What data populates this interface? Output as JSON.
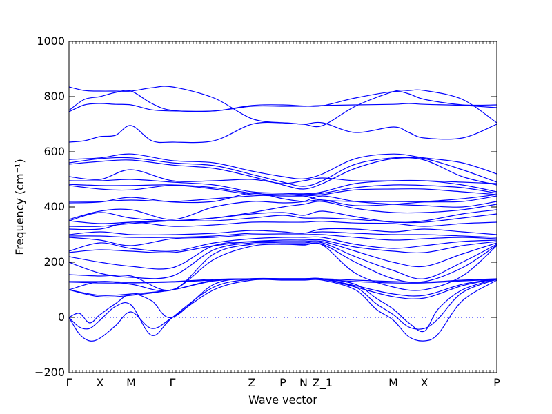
{
  "chart_data": {
    "type": "line",
    "xlabel": "Wave vector",
    "ylabel": "Frequency (cm⁻¹)",
    "ylim": [
      -200,
      1000
    ],
    "y_ticks": [
      -200,
      0,
      200,
      400,
      600,
      800,
      1000
    ],
    "grid": false,
    "legend": "none",
    "zero_line": {
      "y": 0,
      "style": "dotted"
    },
    "x_points": [
      {
        "label": "Γ",
        "x": 0
      },
      {
        "label": "X",
        "x": 0.9
      },
      {
        "label": "M",
        "x": 1.8
      },
      {
        "label": "Γ",
        "x": 3.0
      },
      {
        "label": "Z",
        "x": 5.3
      },
      {
        "label": "P",
        "x": 6.2
      },
      {
        "label": "N",
        "x": 6.8
      },
      {
        "label": "Z_1",
        "x": 7.35
      },
      {
        "label": "M",
        "x": 9.4
      },
      {
        "label": "X",
        "x": 10.3
      },
      {
        "label": "P",
        "x": 12.4
      }
    ],
    "series": [
      {
        "x": [
          0,
          0.45,
          0.9,
          1.35,
          1.8,
          2.4,
          3.0,
          4.2,
          5.3,
          6.2,
          6.8,
          7.35,
          8.3,
          9.4,
          9.85,
          10.3,
          11.4,
          12.4
        ],
        "values": [
          835,
          822,
          820,
          820,
          820,
          832,
          835,
          795,
          720,
          705,
          700,
          695,
          765,
          818,
          822,
          822,
          790,
          705
        ]
      },
      {
        "x": [
          0,
          0.45,
          0.9,
          1.35,
          1.8,
          2.4,
          3.0,
          4.2,
          5.3,
          6.2,
          6.8,
          7.35,
          8.3,
          9.4,
          9.85,
          10.3,
          11.4,
          12.4
        ],
        "values": [
          750,
          790,
          800,
          815,
          820,
          775,
          750,
          748,
          768,
          770,
          766,
          767,
          795,
          818,
          810,
          790,
          770,
          770
        ]
      },
      {
        "x": [
          0,
          0.45,
          0.9,
          1.35,
          1.8,
          2.4,
          3.0,
          4.2,
          5.3,
          6.2,
          6.8,
          7.35,
          8.3,
          9.4,
          9.85,
          10.3,
          11.4,
          12.4
        ],
        "values": [
          745,
          770,
          775,
          772,
          770,
          752,
          748,
          748,
          765,
          765,
          765,
          768,
          770,
          772,
          775,
          772,
          768,
          760
        ]
      },
      {
        "x": [
          0,
          0.45,
          0.9,
          1.35,
          1.8,
          2.4,
          3.0,
          4.2,
          5.3,
          6.2,
          6.8,
          7.35,
          8.3,
          9.4,
          9.85,
          10.3,
          11.4,
          12.4
        ],
        "values": [
          635,
          640,
          655,
          660,
          695,
          640,
          635,
          640,
          700,
          705,
          700,
          705,
          670,
          690,
          670,
          650,
          650,
          700
        ]
      },
      {
        "x": [
          0,
          0.9,
          1.8,
          3.0,
          4.2,
          5.3,
          6.2,
          6.8,
          7.35,
          8.3,
          9.4,
          10.3,
          11.4,
          12.4
        ],
        "values": [
          572,
          578,
          592,
          568,
          560,
          530,
          510,
          502,
          520,
          575,
          592,
          578,
          560,
          520
        ]
      },
      {
        "x": [
          0,
          0.9,
          1.8,
          3.0,
          4.2,
          5.3,
          6.2,
          6.8,
          7.35,
          8.3,
          9.4,
          10.3,
          11.4,
          12.4
        ],
        "values": [
          560,
          575,
          578,
          560,
          550,
          518,
          490,
          475,
          495,
          555,
          578,
          575,
          535,
          490
        ]
      },
      {
        "x": [
          0,
          0.9,
          1.8,
          3.0,
          4.2,
          5.3,
          6.2,
          6.8,
          7.35,
          8.3,
          9.4,
          10.3,
          11.4,
          12.4
        ],
        "values": [
          555,
          565,
          570,
          552,
          540,
          510,
          480,
          465,
          485,
          540,
          575,
          570,
          510,
          480
        ]
      },
      {
        "x": [
          0,
          0.9,
          1.8,
          3.0,
          4.2,
          5.3,
          6.2,
          6.8,
          7.35,
          8.3,
          9.4,
          10.3,
          11.4,
          12.4
        ],
        "values": [
          510,
          500,
          535,
          495,
          495,
          500,
          485,
          495,
          505,
          495,
          495,
          495,
          490,
          485
        ]
      },
      {
        "x": [
          0,
          0.9,
          1.8,
          3.0,
          4.2,
          5.3,
          6.2,
          6.8,
          7.35,
          8.3,
          9.4,
          10.3,
          11.4,
          12.4
        ],
        "values": [
          495,
          495,
          500,
          490,
          480,
          455,
          450,
          448,
          455,
          485,
          495,
          495,
          480,
          455
        ]
      },
      {
        "x": [
          0,
          0.9,
          1.8,
          3.0,
          4.2,
          5.3,
          6.2,
          6.8,
          7.35,
          8.3,
          9.4,
          10.3,
          11.4,
          12.4
        ],
        "values": [
          482,
          478,
          478,
          480,
          470,
          450,
          445,
          445,
          450,
          470,
          480,
          478,
          470,
          450
        ]
      },
      {
        "x": [
          0,
          0.9,
          1.8,
          3.0,
          4.2,
          5.3,
          6.2,
          6.8,
          7.35,
          8.3,
          9.4,
          10.3,
          11.4,
          12.4
        ],
        "values": [
          478,
          465,
          462,
          478,
          465,
          445,
          440,
          440,
          445,
          462,
          465,
          465,
          455,
          445
        ]
      },
      {
        "x": [
          0,
          0.9,
          1.8,
          3.0,
          4.2,
          5.3,
          6.2,
          6.8,
          7.35,
          8.3,
          9.4,
          10.3,
          11.4,
          12.4
        ],
        "values": [
          420,
          420,
          425,
          420,
          430,
          440,
          445,
          440,
          425,
          420,
          420,
          420,
          430,
          445
        ]
      },
      {
        "x": [
          0,
          0.9,
          1.8,
          3.0,
          4.2,
          5.3,
          6.2,
          6.8,
          7.35,
          8.3,
          9.4,
          10.3,
          11.4,
          12.4
        ],
        "values": [
          415,
          418,
          435,
          418,
          420,
          450,
          430,
          420,
          425,
          405,
          410,
          418,
          420,
          440
        ]
      },
      {
        "x": [
          0,
          0.9,
          1.8,
          3.0,
          4.2,
          5.3,
          6.2,
          6.8,
          7.35,
          8.3,
          9.4,
          10.3,
          11.4,
          12.4
        ],
        "values": [
          355,
          385,
          390,
          355,
          400,
          420,
          415,
          420,
          440,
          420,
          410,
          405,
          400,
          420
        ]
      },
      {
        "x": [
          0,
          0.9,
          1.8,
          3.0,
          4.2,
          5.3,
          6.2,
          6.8,
          7.35,
          8.3,
          9.4,
          10.3,
          11.4,
          12.4
        ],
        "values": [
          350,
          380,
          360,
          350,
          360,
          380,
          400,
          410,
          420,
          395,
          380,
          380,
          390,
          410
        ]
      },
      {
        "x": [
          0,
          0.9,
          1.8,
          3.0,
          4.2,
          5.3,
          6.2,
          6.8,
          7.35,
          8.3,
          9.4,
          10.3,
          11.4,
          12.4
        ],
        "values": [
          350,
          340,
          345,
          350,
          360,
          375,
          380,
          370,
          385,
          365,
          345,
          350,
          375,
          390
        ]
      },
      {
        "x": [
          0,
          0.9,
          1.8,
          3.0,
          4.2,
          5.3,
          6.2,
          6.8,
          7.35,
          8.3,
          9.4,
          10.3,
          11.4,
          12.4
        ],
        "values": [
          330,
          330,
          340,
          350,
          350,
          360,
          370,
          360,
          360,
          355,
          345,
          345,
          360,
          375
        ]
      },
      {
        "x": [
          0,
          0.9,
          1.8,
          3.0,
          4.2,
          5.3,
          6.2,
          6.8,
          7.35,
          8.3,
          9.4,
          10.3,
          11.4,
          12.4
        ],
        "values": [
          320,
          320,
          345,
          330,
          335,
          345,
          345,
          345,
          348,
          342,
          340,
          330,
          340,
          345
        ]
      },
      {
        "x": [
          0,
          0.9,
          1.8,
          3.0,
          4.2,
          5.3,
          6.2,
          6.8,
          7.35,
          8.3,
          9.4,
          10.3,
          11.4,
          12.4
        ],
        "values": [
          300,
          310,
          300,
          300,
          305,
          315,
          310,
          305,
          320,
          320,
          310,
          320,
          310,
          300
        ]
      },
      {
        "x": [
          0,
          0.9,
          1.8,
          3.0,
          4.2,
          5.3,
          6.2,
          6.8,
          7.35,
          8.3,
          9.4,
          10.3,
          11.4,
          12.4
        ],
        "values": [
          295,
          295,
          290,
          290,
          295,
          305,
          305,
          305,
          310,
          305,
          300,
          300,
          295,
          290
        ]
      },
      {
        "x": [
          0,
          0.9,
          1.8,
          3.0,
          4.2,
          5.3,
          6.2,
          6.8,
          7.35,
          8.3,
          9.4,
          10.3,
          11.4,
          12.4
        ],
        "values": [
          290,
          280,
          260,
          285,
          290,
          300,
          300,
          300,
          300,
          290,
          280,
          285,
          290,
          285
        ]
      },
      {
        "x": [
          0,
          0.9,
          1.8,
          3.0,
          4.2,
          5.3,
          6.2,
          6.8,
          7.35,
          8.3,
          9.4,
          10.3,
          11.4,
          12.4
        ],
        "values": [
          240,
          270,
          250,
          240,
          270,
          285,
          290,
          290,
          290,
          265,
          250,
          260,
          275,
          280
        ]
      },
      {
        "x": [
          0,
          0.9,
          1.8,
          3.0,
          4.2,
          5.3,
          6.2,
          6.8,
          7.35,
          8.3,
          9.4,
          10.3,
          11.4,
          12.4
        ],
        "values": [
          235,
          245,
          240,
          235,
          260,
          275,
          280,
          280,
          280,
          255,
          240,
          235,
          260,
          275
        ]
      },
      {
        "x": [
          0,
          0.9,
          1.8,
          3.0,
          4.2,
          5.3,
          6.2,
          6.8,
          7.35,
          8.3,
          9.4,
          10.3,
          11.4,
          12.4
        ],
        "values": [
          220,
          200,
          185,
          180,
          260,
          275,
          275,
          275,
          275,
          240,
          200,
          185,
          230,
          270
        ]
      },
      {
        "x": [
          0,
          0.9,
          1.8,
          3.0,
          4.2,
          5.3,
          6.2,
          6.8,
          7.35,
          8.3,
          9.4,
          10.3,
          11.4,
          12.4
        ],
        "values": [
          200,
          160,
          145,
          150,
          245,
          270,
          270,
          270,
          270,
          220,
          170,
          140,
          200,
          265
        ]
      },
      {
        "x": [
          0,
          0.9,
          1.8,
          3.0,
          4.2,
          5.3,
          6.2,
          6.8,
          7.35,
          8.3,
          9.4,
          10.3,
          11.4,
          12.4
        ],
        "values": [
          155,
          150,
          150,
          100,
          230,
          265,
          265,
          265,
          265,
          200,
          140,
          130,
          180,
          262
        ]
      },
      {
        "x": [
          0,
          0.9,
          1.8,
          3.0,
          4.2,
          5.3,
          6.2,
          6.8,
          7.35,
          8.3,
          9.4,
          10.3,
          11.4,
          12.4
        ],
        "values": [
          100,
          130,
          120,
          100,
          210,
          258,
          265,
          262,
          262,
          160,
          110,
          100,
          150,
          260
        ]
      },
      {
        "x": [
          0,
          0.9,
          1.8,
          3.0,
          4.2,
          5.3,
          6.2,
          6.8,
          7.35,
          8.3,
          9.4,
          10.3,
          11.4,
          12.4
        ],
        "values": [
          130,
          130,
          128,
          130,
          138,
          140,
          140,
          140,
          140,
          135,
          130,
          128,
          135,
          140
        ]
      },
      {
        "x": [
          0,
          0.9,
          1.8,
          3.0,
          4.2,
          5.3,
          6.2,
          6.8,
          7.35,
          8.3,
          9.4,
          10.3,
          11.4,
          12.4
        ],
        "values": [
          128,
          125,
          125,
          128,
          135,
          138,
          138,
          138,
          138,
          130,
          125,
          125,
          132,
          138
        ]
      },
      {
        "x": [
          0,
          0.9,
          1.8,
          3.0,
          4.2,
          5.3,
          6.2,
          6.8,
          7.35,
          8.3,
          9.4,
          10.3,
          11.4,
          12.4
        ],
        "values": [
          100,
          80,
          85,
          100,
          135,
          140,
          140,
          140,
          140,
          115,
          85,
          80,
          120,
          140
        ]
      },
      {
        "x": [
          0,
          0.9,
          1.8,
          3.0,
          4.2,
          5.3,
          6.2,
          6.8,
          7.35,
          8.3,
          9.4,
          10.3,
          11.4,
          12.4
        ],
        "values": [
          100,
          75,
          80,
          100,
          132,
          140,
          140,
          140,
          140,
          110,
          75,
          70,
          115,
          140
        ]
      },
      {
        "x": [
          0,
          0.3,
          0.6,
          0.9,
          1.35,
          1.8,
          2.4,
          3.0,
          4.2,
          5.3,
          6.2,
          6.8,
          7.35,
          8.3,
          8.9,
          9.4,
          9.85,
          10.3,
          10.7,
          11.4,
          12.4
        ],
        "values": [
          0,
          15,
          -20,
          10,
          50,
          85,
          60,
          0,
          120,
          140,
          140,
          140,
          140,
          120,
          70,
          30,
          -20,
          -50,
          30,
          100,
          140
        ]
      },
      {
        "x": [
          0,
          0.3,
          0.6,
          0.9,
          1.35,
          1.8,
          2.4,
          3.0,
          4.2,
          5.3,
          6.2,
          6.8,
          7.35,
          8.3,
          8.9,
          9.4,
          9.85,
          10.3,
          10.7,
          11.4,
          12.4
        ],
        "values": [
          0,
          -35,
          -40,
          -10,
          40,
          45,
          -65,
          0,
          110,
          138,
          138,
          138,
          138,
          110,
          50,
          10,
          -35,
          -40,
          -5,
          90,
          138
        ]
      },
      {
        "x": [
          0,
          0.3,
          0.6,
          0.9,
          1.35,
          1.8,
          2.4,
          3.0,
          4.2,
          5.3,
          6.2,
          6.8,
          7.35,
          8.3,
          8.9,
          9.4,
          9.85,
          10.3,
          10.7,
          11.4,
          12.4
        ],
        "values": [
          0,
          -60,
          -85,
          -75,
          -30,
          20,
          -40,
          0,
          100,
          135,
          135,
          135,
          135,
          100,
          30,
          -10,
          -70,
          -85,
          -60,
          60,
          135
        ]
      }
    ]
  }
}
